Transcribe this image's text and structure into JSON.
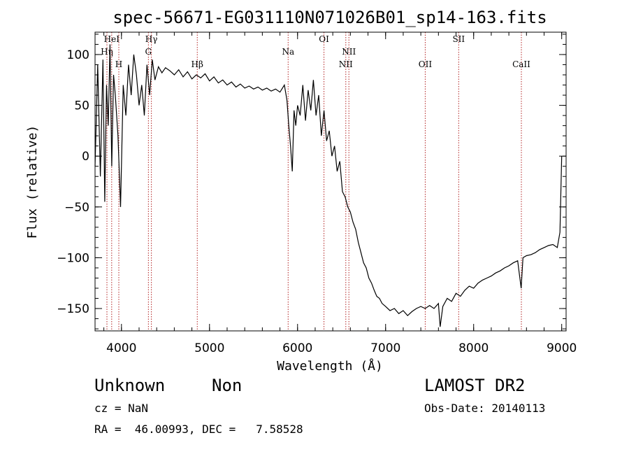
{
  "chart_data": {
    "type": "line",
    "title": "spec-56671-EG031110N071026B01_sp14-163.fits",
    "xlabel": "Wavelength (Å)",
    "ylabel": "Flux (relative)",
    "xlim": [
      3700,
      9050
    ],
    "ylim": [
      -172,
      122
    ],
    "x_ticks": [
      4000,
      5000,
      6000,
      7000,
      8000,
      9000
    ],
    "x_tick_labels": [
      "4000",
      "5000",
      "6000",
      "7000",
      "8000",
      "9000"
    ],
    "y_ticks": [
      -150,
      -100,
      -50,
      0,
      50,
      100
    ],
    "y_tick_labels": [
      "−150",
      "−100",
      "−50",
      "0",
      "50",
      "100"
    ],
    "grid": false,
    "series": [
      {
        "x": [
          3700,
          3730,
          3760,
          3790,
          3810,
          3830,
          3850,
          3870,
          3890,
          3910,
          3930,
          3960,
          3990,
          4020,
          4050,
          4080,
          4110,
          4140,
          4170,
          4200,
          4230,
          4260,
          4290,
          4320,
          4350,
          4380,
          4420,
          4460,
          4500,
          4550,
          4600,
          4650,
          4700,
          4750,
          4800,
          4850,
          4900,
          4950,
          5000,
          5050,
          5100,
          5150,
          5200,
          5250,
          5300,
          5350,
          5400,
          5450,
          5500,
          5550,
          5600,
          5650,
          5700,
          5750,
          5800,
          5850,
          5880,
          5900,
          5920,
          5940,
          5960,
          5980,
          6000,
          6030,
          6060,
          6090,
          6120,
          6150,
          6180,
          6210,
          6240,
          6270,
          6300,
          6330,
          6360,
          6390,
          6420,
          6450,
          6480,
          6510,
          6540,
          6570,
          6600,
          6630,
          6660,
          6690,
          6720,
          6750,
          6780,
          6810,
          6840,
          6870,
          6900,
          6930,
          6960,
          7000,
          7050,
          7100,
          7150,
          7200,
          7250,
          7300,
          7350,
          7400,
          7450,
          7500,
          7550,
          7600,
          7620,
          7650,
          7700,
          7750,
          7800,
          7850,
          7900,
          7950,
          8000,
          8050,
          8100,
          8150,
          8200,
          8250,
          8300,
          8350,
          8400,
          8450,
          8500,
          8540,
          8560,
          8600,
          8650,
          8700,
          8750,
          8800,
          8850,
          8900,
          8950,
          8980,
          9000
        ],
        "y": [
          -10,
          90,
          -20,
          95,
          -45,
          70,
          30,
          110,
          -10,
          80,
          60,
          20,
          -50,
          70,
          40,
          90,
          60,
          100,
          80,
          50,
          70,
          40,
          90,
          60,
          95,
          75,
          88,
          82,
          87,
          84,
          80,
          85,
          78,
          83,
          76,
          80,
          77,
          81,
          74,
          78,
          72,
          75,
          70,
          73,
          68,
          71,
          67,
          69,
          66,
          68,
          65,
          67,
          64,
          66,
          63,
          70,
          55,
          30,
          10,
          -15,
          45,
          30,
          50,
          40,
          70,
          35,
          65,
          45,
          75,
          40,
          60,
          20,
          45,
          15,
          25,
          0,
          10,
          -15,
          -5,
          -35,
          -40,
          -50,
          -55,
          -65,
          -72,
          -85,
          -95,
          -105,
          -110,
          -120,
          -125,
          -132,
          -138,
          -140,
          -145,
          -148,
          -152,
          -150,
          -155,
          -152,
          -157,
          -153,
          -150,
          -148,
          -150,
          -147,
          -150,
          -145,
          -168,
          -148,
          -140,
          -143,
          -135,
          -138,
          -132,
          -128,
          -130,
          -125,
          -122,
          -120,
          -118,
          -115,
          -113,
          -110,
          -108,
          -105,
          -103,
          -130,
          -100,
          -98,
          -97,
          -95,
          -92,
          -90,
          -88,
          -87,
          -90,
          -75,
          0
        ]
      }
    ],
    "lines": [
      {
        "x": 3835,
        "label": "Hη",
        "row": 2
      },
      {
        "x": 3889,
        "label": "HeI",
        "row": 1
      },
      {
        "x": 3970,
        "label": "H",
        "row": 3
      },
      {
        "x": 4306,
        "label": "G",
        "row": 2
      },
      {
        "x": 4340,
        "label": "Hγ",
        "row": 1
      },
      {
        "x": 4861,
        "label": "Hβ",
        "row": 3
      },
      {
        "x": 5893,
        "label": "Na",
        "row": 2
      },
      {
        "x": 6300,
        "label": "OI",
        "row": 1
      },
      {
        "x": 6548,
        "label": "NII",
        "row": 3
      },
      {
        "x": 6583,
        "label": "NII",
        "row": 2
      },
      {
        "x": 7450,
        "label": "OII",
        "row": 3
      },
      {
        "x": 7830,
        "label": "SII",
        "row": 1
      },
      {
        "x": 8542,
        "label": "CaII",
        "row": 3
      }
    ]
  },
  "info": {
    "class_label": "Unknown",
    "subclass_label": "Non",
    "survey": "LAMOST DR2",
    "redshift": "cz = NaN",
    "obs_date": "Obs-Date: 20140113",
    "coords": "RA =  46.00993, DEC =   7.58528"
  },
  "colors": {
    "spectrum": "#000000",
    "line_marker": "#b22222",
    "background": "#ffffff"
  }
}
